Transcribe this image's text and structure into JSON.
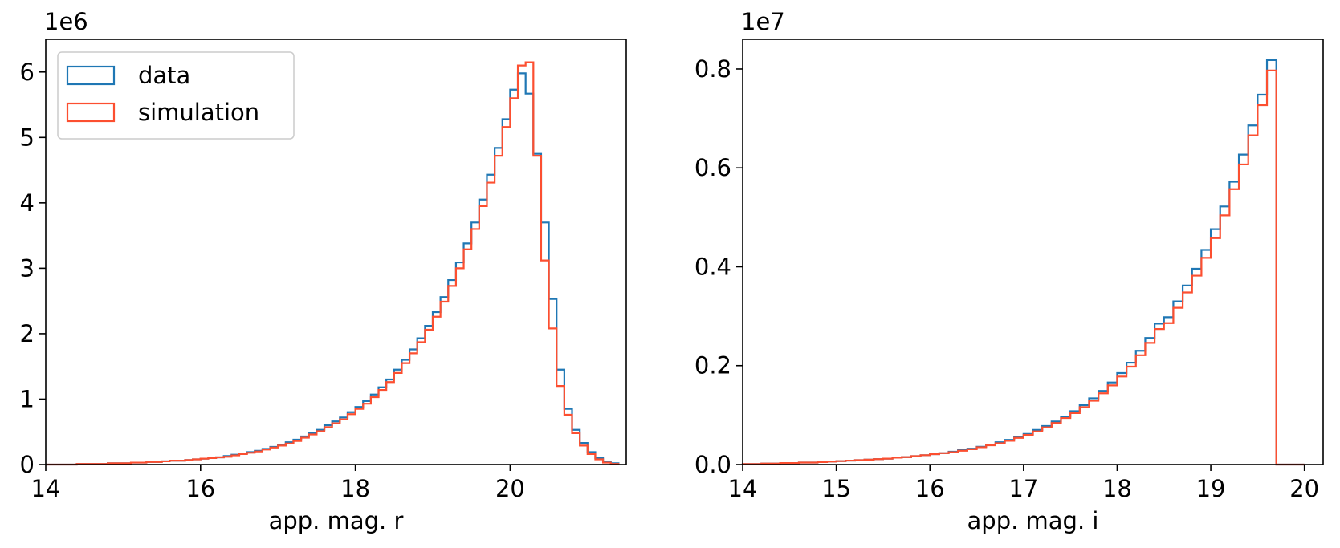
{
  "chart_data": [
    {
      "type": "histogram-step",
      "xlabel": "app. mag. r",
      "ylabel": "",
      "offset_text": "1e6",
      "xlim": [
        14,
        21.5
      ],
      "ylim": [
        0,
        6.5
      ],
      "xticks": [
        14,
        16,
        18,
        20
      ],
      "yticks": [
        0,
        1,
        2,
        3,
        4,
        5,
        6
      ],
      "grid": false,
      "legend": {
        "placement": "top-left",
        "entries": [
          "data",
          "simulation"
        ]
      },
      "bins": {
        "start": 14.0,
        "step": 0.1,
        "count": 74
      },
      "series": [
        {
          "name": "data",
          "color": "#1f77b4",
          "values": [
            0.0,
            0.0,
            0.0,
            0.0,
            0.01,
            0.01,
            0.01,
            0.01,
            0.02,
            0.02,
            0.02,
            0.03,
            0.03,
            0.04,
            0.04,
            0.05,
            0.06,
            0.06,
            0.07,
            0.08,
            0.09,
            0.1,
            0.11,
            0.13,
            0.15,
            0.17,
            0.19,
            0.21,
            0.24,
            0.27,
            0.3,
            0.34,
            0.38,
            0.43,
            0.48,
            0.53,
            0.6,
            0.66,
            0.72,
            0.8,
            0.88,
            0.97,
            1.07,
            1.18,
            1.3,
            1.45,
            1.6,
            1.76,
            1.93,
            2.12,
            2.33,
            2.56,
            2.82,
            3.09,
            3.38,
            3.7,
            4.05,
            4.43,
            4.84,
            5.28,
            5.73,
            5.98,
            5.67,
            4.75,
            3.7,
            2.53,
            1.45,
            0.85,
            0.53,
            0.33,
            0.19,
            0.1,
            0.04,
            0.02
          ]
        },
        {
          "name": "simulation",
          "color": "#fc4f30",
          "values": [
            0.0,
            0.0,
            0.0,
            0.0,
            0.01,
            0.01,
            0.01,
            0.01,
            0.02,
            0.02,
            0.02,
            0.03,
            0.03,
            0.04,
            0.04,
            0.05,
            0.06,
            0.06,
            0.07,
            0.08,
            0.09,
            0.1,
            0.11,
            0.12,
            0.14,
            0.16,
            0.18,
            0.2,
            0.23,
            0.26,
            0.29,
            0.32,
            0.36,
            0.41,
            0.46,
            0.51,
            0.57,
            0.63,
            0.69,
            0.77,
            0.85,
            0.93,
            1.03,
            1.14,
            1.26,
            1.4,
            1.55,
            1.7,
            1.87,
            2.06,
            2.26,
            2.49,
            2.73,
            3.0,
            3.29,
            3.6,
            3.95,
            4.31,
            4.72,
            5.16,
            5.6,
            6.1,
            6.15,
            4.72,
            3.12,
            2.08,
            1.2,
            0.76,
            0.48,
            0.29,
            0.16,
            0.08,
            0.03,
            0.01
          ]
        }
      ]
    },
    {
      "type": "histogram-step",
      "xlabel": "app. mag. i",
      "ylabel": "",
      "offset_text": "1e7",
      "xlim": [
        14,
        20.2
      ],
      "ylim": [
        0,
        0.86
      ],
      "xticks": [
        14,
        15,
        16,
        17,
        18,
        19,
        20
      ],
      "ytick_labels": [
        "0.0",
        "0.2",
        "0.4",
        "0.6",
        "0.8"
      ],
      "yticks": [
        0,
        0.2,
        0.4,
        0.6,
        0.8
      ],
      "grid": false,
      "bins": {
        "start": 14.0,
        "step": 0.1,
        "count": 60
      },
      "series": [
        {
          "name": "data",
          "color": "#1f77b4",
          "values": [
            0.001,
            0.001,
            0.002,
            0.002,
            0.003,
            0.003,
            0.004,
            0.004,
            0.005,
            0.006,
            0.007,
            0.008,
            0.009,
            0.01,
            0.011,
            0.012,
            0.014,
            0.015,
            0.017,
            0.019,
            0.021,
            0.023,
            0.026,
            0.029,
            0.032,
            0.036,
            0.04,
            0.045,
            0.05,
            0.056,
            0.062,
            0.07,
            0.078,
            0.087,
            0.097,
            0.108,
            0.12,
            0.134,
            0.149,
            0.166,
            0.185,
            0.206,
            0.23,
            0.256,
            0.285,
            0.298,
            0.33,
            0.362,
            0.396,
            0.434,
            0.476,
            0.522,
            0.572,
            0.627,
            0.686,
            0.748,
            0.818,
            0.0,
            0.0,
            0.0
          ]
        },
        {
          "name": "simulation",
          "color": "#fc4f30",
          "values": [
            0.001,
            0.001,
            0.002,
            0.002,
            0.003,
            0.003,
            0.004,
            0.004,
            0.005,
            0.006,
            0.007,
            0.008,
            0.009,
            0.01,
            0.011,
            0.012,
            0.014,
            0.015,
            0.017,
            0.019,
            0.021,
            0.023,
            0.025,
            0.028,
            0.031,
            0.035,
            0.039,
            0.043,
            0.048,
            0.054,
            0.06,
            0.067,
            0.075,
            0.084,
            0.094,
            0.104,
            0.116,
            0.129,
            0.144,
            0.16,
            0.178,
            0.198,
            0.221,
            0.246,
            0.274,
            0.286,
            0.317,
            0.348,
            0.382,
            0.418,
            0.458,
            0.504,
            0.557,
            0.607,
            0.666,
            0.727,
            0.797,
            0.0,
            0.0,
            0.0
          ]
        }
      ]
    }
  ]
}
